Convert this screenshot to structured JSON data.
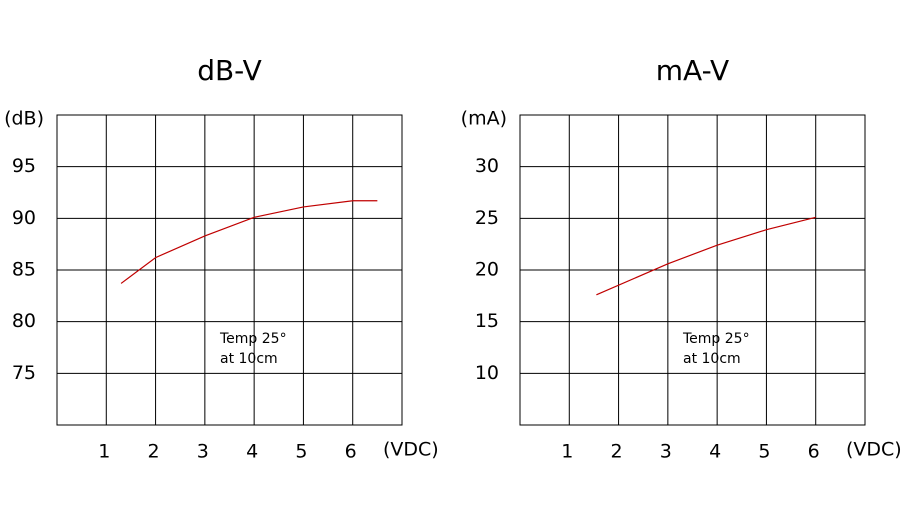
{
  "chart_data": [
    {
      "type": "line",
      "title": "dB-V",
      "ylabel": "(dB)",
      "xlabel": "(VDC)",
      "x": [
        1.3,
        2,
        3,
        4,
        5,
        6,
        6.5
      ],
      "values": [
        83.7,
        86.2,
        88.3,
        90.1,
        91.1,
        91.7,
        91.7
      ],
      "color": "#c00000",
      "xlim": [
        0,
        7
      ],
      "xticks": [
        1,
        2,
        3,
        4,
        5,
        6
      ],
      "ylim": [
        70,
        100
      ],
      "yticks": [
        75,
        80,
        85,
        90,
        95
      ],
      "grid": true,
      "annotation": [
        "Temp 25°",
        "at 10cm"
      ]
    },
    {
      "type": "line",
      "title": "mA-V",
      "ylabel": "(mA)",
      "xlabel": "(VDC)",
      "x": [
        1.55,
        3,
        4,
        5,
        6
      ],
      "values": [
        17.6,
        20.6,
        22.4,
        23.9,
        25.1
      ],
      "color": "#c00000",
      "xlim": [
        0,
        7
      ],
      "xticks": [
        1,
        2,
        3,
        4,
        5,
        6
      ],
      "ylim": [
        5,
        35
      ],
      "yticks": [
        10,
        15,
        20,
        25,
        30
      ],
      "grid": true,
      "annotation": [
        "Temp 25°",
        "at 10cm"
      ]
    }
  ]
}
